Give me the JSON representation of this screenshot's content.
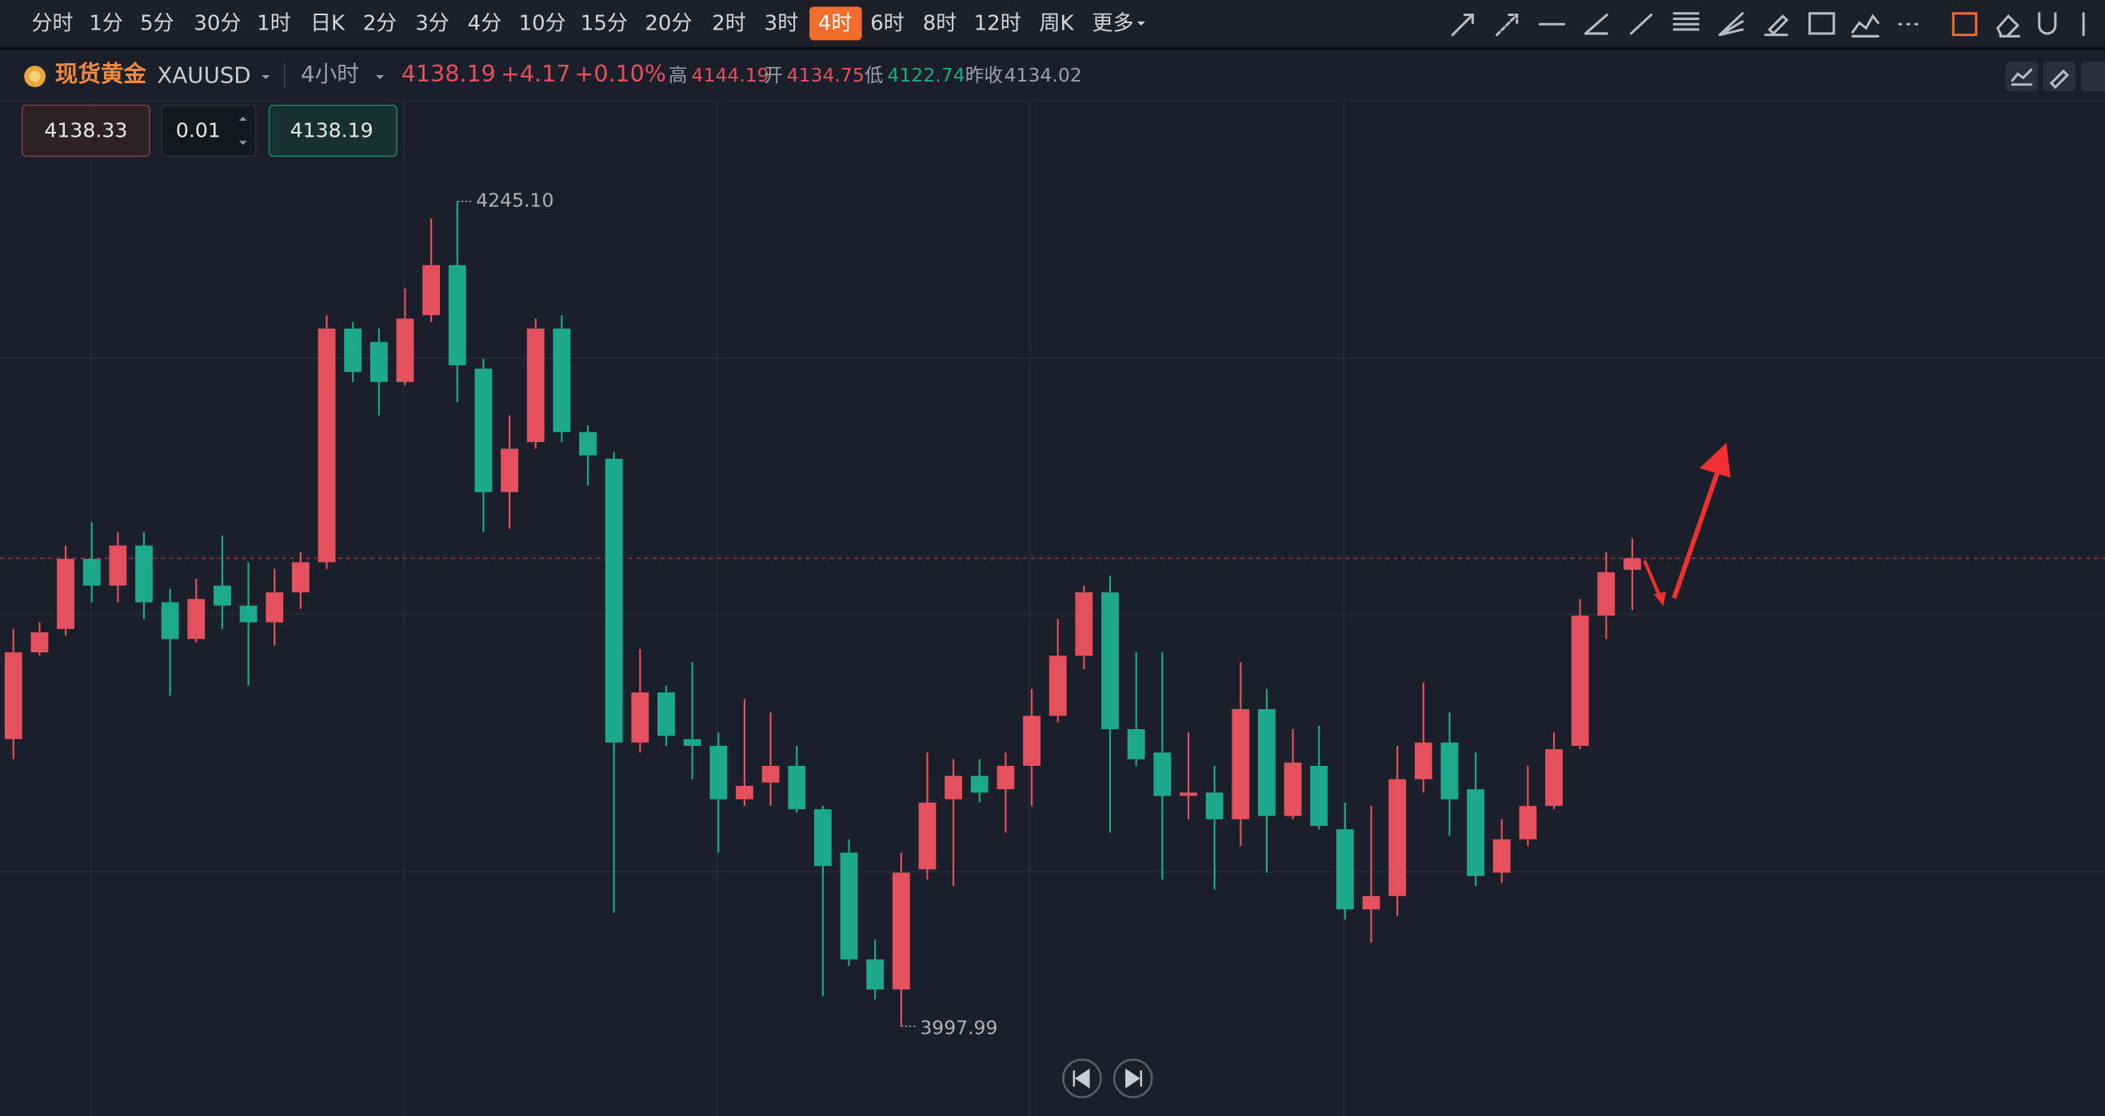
{
  "toolbar": {
    "tabs": [
      "分时",
      "1分",
      "5分",
      "30分",
      "1时",
      "日K",
      "2分",
      "3分",
      "4分",
      "10分",
      "15分",
      "20分",
      "2时",
      "3时",
      "4时",
      "6时",
      "8时",
      "12时",
      "周K",
      "更多"
    ]
  },
  "header": {
    "name": "现货黄金",
    "symbol": "XAUUSD",
    "period": "4小时",
    "price": 4138.19,
    "change": "+4.17",
    "change_pct": "+0.10%",
    "stats": [
      {
        "label": "高",
        "value": 4144.19
      },
      {
        "label": "开",
        "value": 4134.75
      },
      {
        "label": "低",
        "value": 4122.74
      },
      {
        "label": "昨收",
        "value": 4134.02
      }
    ]
  },
  "order": {
    "sell": 4138.33,
    "qty": 0.01,
    "buy": 4138.19
  },
  "chart_data": {
    "type": "candlestick",
    "up_color": "#e5505f",
    "down_color": "#1daa8c",
    "ylim": [
      3971.1,
      4275.3
    ],
    "open": [
      4084,
      4110,
      4117,
      4138,
      4130,
      4142,
      4125,
      4114,
      4130,
      4124,
      4119,
      4128,
      4137,
      4207,
      4203,
      4191,
      4211,
      4226,
      4195,
      4158,
      4173,
      4207,
      4176,
      4168,
      4083,
      4098,
      4084,
      4082,
      4066,
      4071,
      4076,
      4063,
      4050,
      4018,
      4009,
      4045,
      4066,
      4073,
      4069,
      4076,
      4091,
      4109,
      4128,
      4087,
      4080,
      4067,
      4068,
      4060,
      4093,
      4061,
      4076,
      4057,
      4033,
      4037,
      4072,
      4083,
      4069,
      4044,
      4054,
      4064,
      4082,
      4121,
      4134.75
    ],
    "high": [
      4117,
      4119,
      4142,
      4149,
      4146,
      4146,
      4129,
      4132,
      4145,
      4137,
      4135,
      4140,
      4211,
      4209,
      4207,
      4219,
      4240,
      4245.1,
      4198,
      4181,
      4210,
      4211,
      4178,
      4170,
      4111,
      4100,
      4107,
      4086,
      4096,
      4092,
      4082,
      4064,
      4054,
      4024,
      4050,
      4080,
      4078,
      4078,
      4080,
      4099,
      4120,
      4130,
      4133,
      4110,
      4110,
      4086,
      4076,
      4107,
      4099,
      4087,
      4088,
      4065,
      4064,
      4082,
      4101,
      4092,
      4080,
      4060,
      4076,
      4086,
      4126,
      4140,
      4144.19
    ],
    "low": [
      4078,
      4109,
      4115,
      4125,
      4125,
      4120,
      4097,
      4113,
      4117,
      4100,
      4112,
      4123,
      4135,
      4191,
      4181,
      4190,
      4209,
      4185,
      4146,
      4147,
      4171,
      4173,
      4160,
      4032,
      4080,
      4082,
      4072,
      4050,
      4064,
      4064,
      4062,
      4007,
      4016,
      4006,
      3997.99,
      4042,
      4040,
      4065,
      4056,
      4064,
      4089,
      4105,
      4056,
      4076,
      4042,
      4060,
      4039,
      4052,
      4044,
      4060,
      4057,
      4030,
      4023,
      4031,
      4068,
      4055,
      4040,
      4041,
      4052,
      4063,
      4081,
      4114,
      4122.74
    ],
    "close": [
      4110,
      4116,
      4138,
      4130,
      4142,
      4125,
      4114,
      4126,
      4124,
      4119,
      4128,
      4137,
      4207,
      4194,
      4191,
      4210,
      4226,
      4196,
      4158,
      4171,
      4207,
      4176,
      4169,
      4083,
      4098,
      4085,
      4082,
      4066,
      4070,
      4076,
      4063,
      4046,
      4018,
      4009,
      4044,
      4065,
      4073,
      4068,
      4076,
      4091,
      4109,
      4128,
      4087,
      4078,
      4067,
      4068,
      4060,
      4093,
      4061,
      4077,
      4058,
      4033,
      4037,
      4072,
      4083,
      4066,
      4043,
      4054,
      4064,
      4081,
      4121,
      4134.02,
      4138.19
    ],
    "annotations": [
      {
        "value": 4245.1,
        "label": "4245.10"
      },
      {
        "value": 3997.99,
        "label": "3997.99"
      }
    ]
  }
}
